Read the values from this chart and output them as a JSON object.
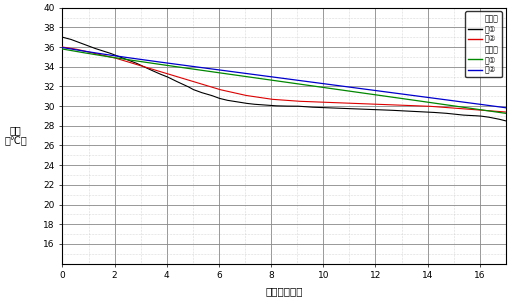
{
  "title": "",
  "xlabel": "日数　（日）",
  "ylabel": "温度\n（℃）",
  "xlim": [
    0,
    17
  ],
  "ylim": [
    14,
    40
  ],
  "xticks": [
    0,
    2,
    4,
    6,
    8,
    10,
    12,
    14,
    16
  ],
  "yticks": [
    16,
    18,
    20,
    22,
    24,
    26,
    28,
    30,
    32,
    34,
    36,
    38,
    40
  ],
  "line1_color": "#000000",
  "line2_color": "#dd0000",
  "line3_color": "#008800",
  "line4_color": "#0000cc",
  "background": "#ffffff",
  "grid_major_color": "#888888",
  "grid_minor_color": "#bbbbbb",
  "black_x": [
    0,
    0.5,
    1.0,
    1.5,
    2.0,
    2.5,
    3.0,
    3.5,
    4.0,
    4.5,
    5.0,
    5.5,
    6.0,
    6.5,
    7.0,
    7.5,
    8.0,
    8.5,
    9.0,
    9.5,
    10.0,
    10.5,
    11.0,
    11.5,
    12.0,
    12.5,
    13.0,
    13.5,
    14.0,
    14.5,
    15.0,
    15.5,
    16.0,
    16.5,
    17.0
  ],
  "black_y": [
    37.0,
    36.5,
    36.0,
    35.5,
    35.0,
    34.5,
    34.0,
    33.4,
    33.0,
    32.4,
    31.7,
    31.2,
    31.0,
    30.7,
    30.4,
    30.2,
    30.1,
    30.0,
    30.0,
    30.0,
    29.9,
    29.8,
    29.7,
    29.6,
    29.6,
    29.5,
    29.4,
    29.4,
    29.3,
    29.2,
    29.1,
    29.0,
    28.9,
    28.7,
    28.5
  ],
  "red_x": [
    0,
    0.5,
    1.0,
    1.5,
    2.0,
    2.5,
    3.0,
    3.5,
    4.0,
    4.5,
    5.0,
    5.5,
    6.0,
    6.5,
    7.0,
    7.5,
    8.0,
    8.5,
    9.0,
    9.5,
    10.0,
    10.5,
    11.0,
    11.5,
    12.0,
    12.5,
    13.0,
    13.5,
    14.0,
    14.5,
    15.0,
    15.5,
    16.0,
    16.5,
    17.0
  ],
  "red_y": [
    36.0,
    35.8,
    35.5,
    35.2,
    35.0,
    34.6,
    34.2,
    33.8,
    33.4,
    33.0,
    32.5,
    32.0,
    31.6,
    31.2,
    31.0,
    30.8,
    30.6,
    30.5,
    30.4,
    30.4,
    30.3,
    30.3,
    30.2,
    30.2,
    30.1,
    30.1,
    30.0,
    30.0,
    30.0,
    29.9,
    29.8,
    29.7,
    29.6,
    29.5,
    29.4
  ],
  "green_x": [
    0,
    1,
    2,
    3,
    4,
    5,
    6,
    7,
    8,
    9,
    10,
    11,
    12,
    13,
    14,
    15,
    16,
    17
  ],
  "green_y": [
    35.5,
    35.1,
    34.6,
    34.0,
    33.4,
    32.8,
    32.4,
    32.1,
    31.8,
    31.5,
    31.3,
    31.1,
    30.9,
    30.7,
    30.5,
    30.3,
    31.5,
    31.3
  ],
  "blue_x": [
    0,
    1,
    2,
    3,
    4,
    5,
    6,
    7,
    8,
    9,
    10,
    11,
    12,
    13,
    14,
    15,
    16,
    17
  ],
  "blue_y": [
    35.6,
    35.2,
    34.8,
    34.2,
    33.6,
    33.0,
    32.6,
    32.3,
    32.0,
    31.7,
    31.5,
    31.3,
    31.1,
    30.9,
    30.7,
    30.5,
    31.7,
    31.5
  ]
}
